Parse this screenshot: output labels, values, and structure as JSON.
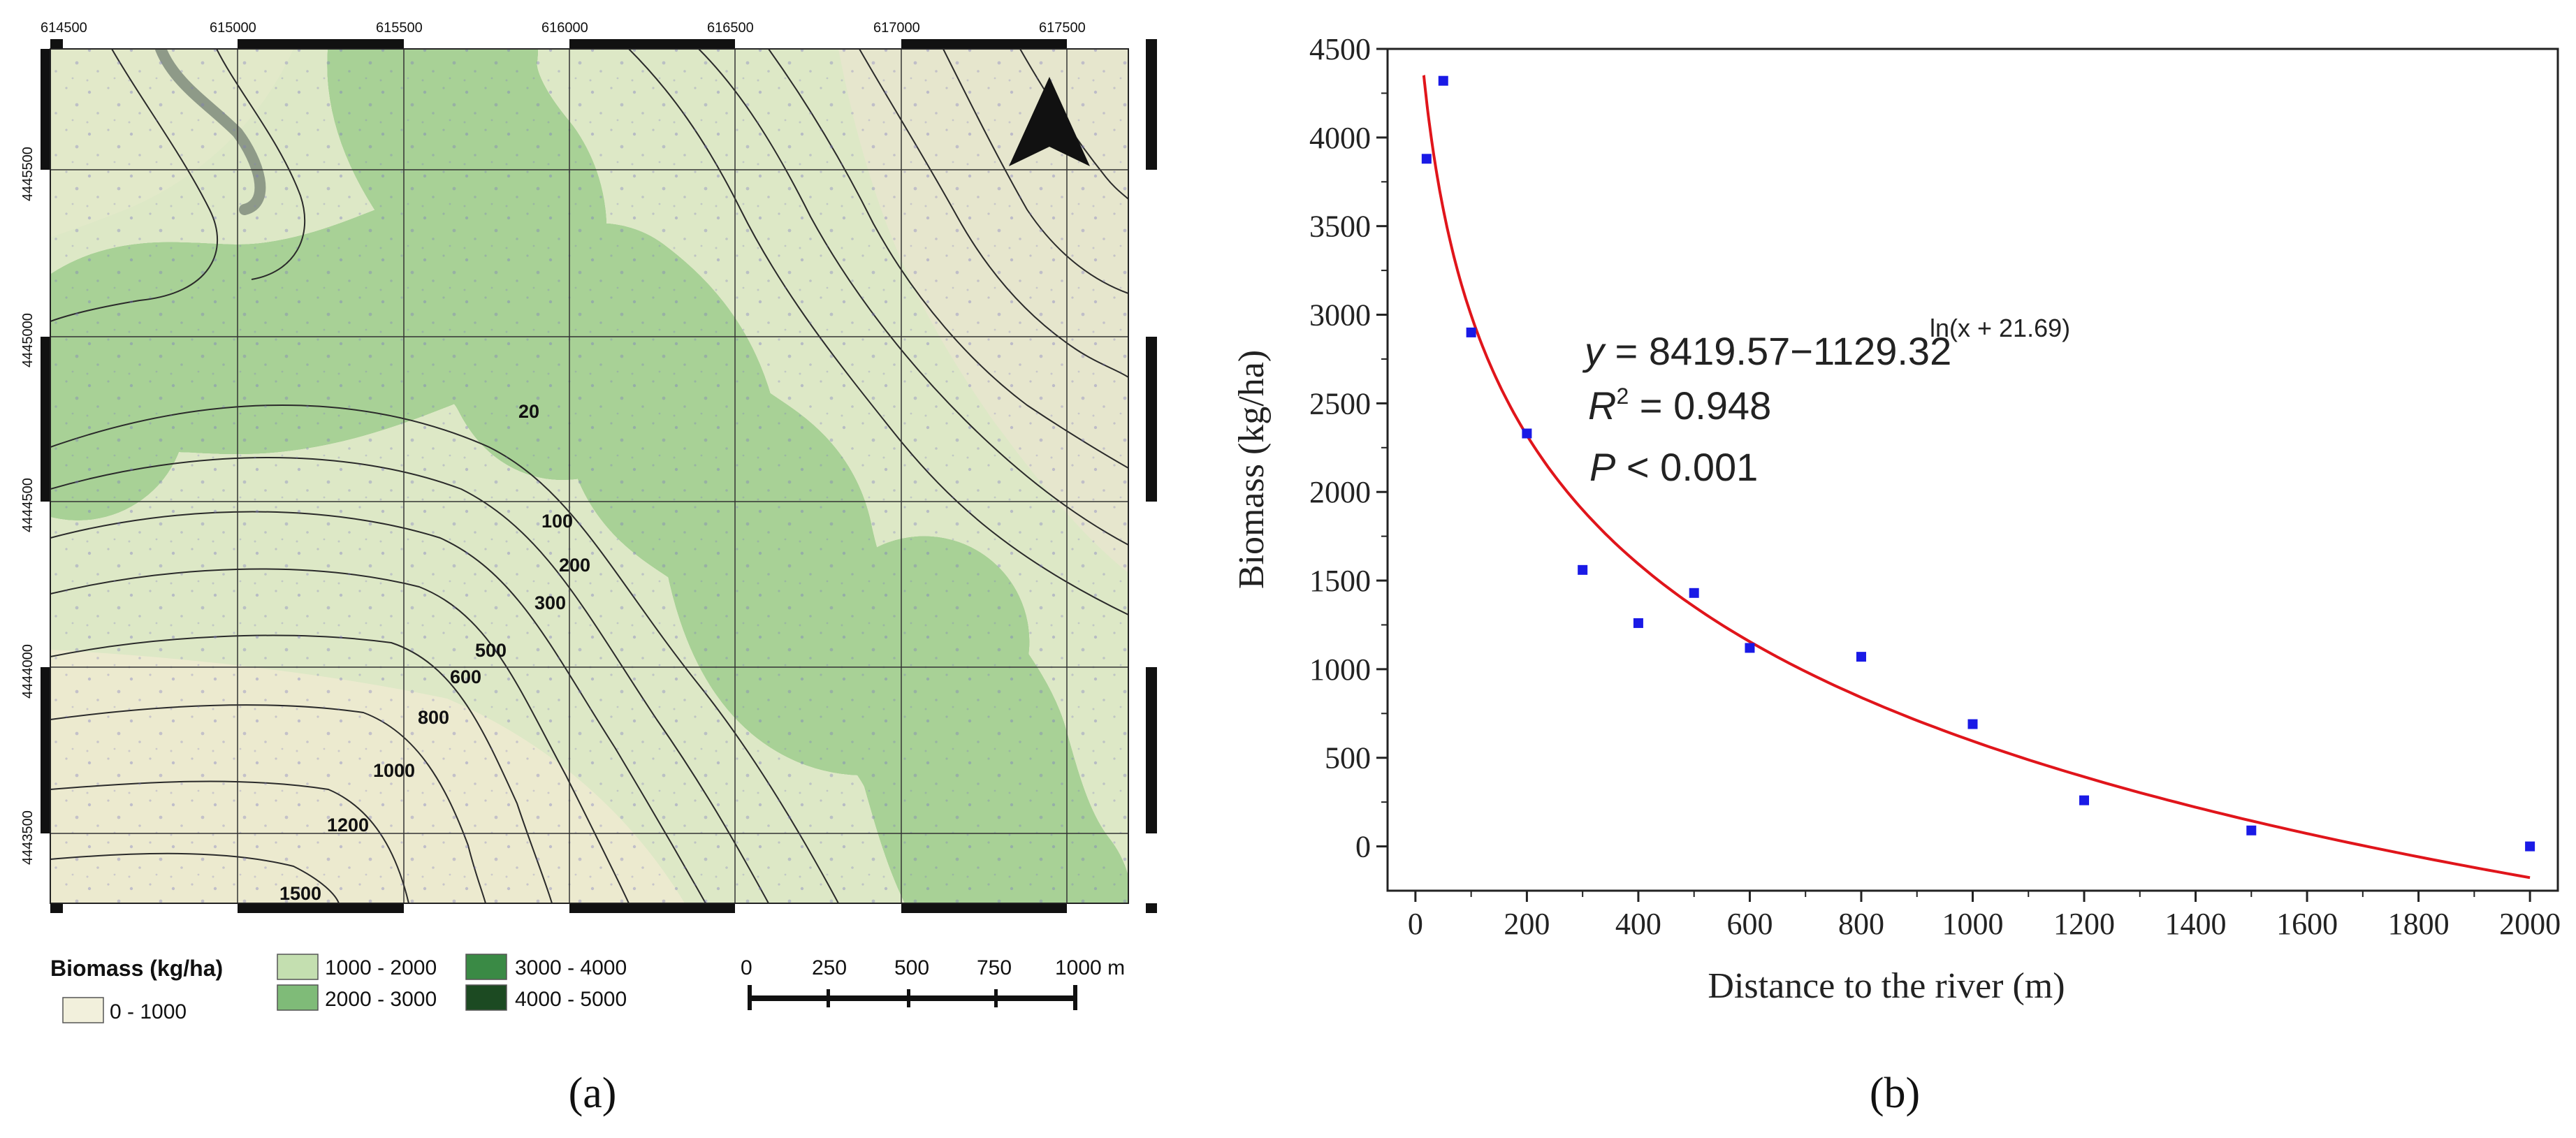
{
  "panel_a": {
    "label": "(a)",
    "map": {
      "grid_x_labels": [
        "614500",
        "615000",
        "615500",
        "616000",
        "616500",
        "617000",
        "617500"
      ],
      "grid_y_labels": [
        "4445500",
        "4445000",
        "4444500",
        "4444000",
        "4443500"
      ],
      "contour_labels": [
        "20",
        "100",
        "200",
        "300",
        "500",
        "600",
        "800",
        "1000",
        "1200",
        "1500"
      ],
      "north_arrow_icon": "north-arrow-icon"
    },
    "legend": {
      "title": "Biomass (kg/ha)",
      "items": [
        {
          "label": "0 - 1000",
          "color": "#f2f0dc"
        },
        {
          "label": "1000 - 2000",
          "color": "#c4dfb0"
        },
        {
          "label": "2000 - 3000",
          "color": "#7fbb78"
        },
        {
          "label": "3000 - 4000",
          "color": "#3a8a45"
        },
        {
          "label": "4000 - 5000",
          "color": "#1c4a22"
        }
      ]
    },
    "scalebar": {
      "ticks": [
        "0",
        "250",
        "500",
        "750",
        "1000 m"
      ]
    }
  },
  "panel_b": {
    "label": "(b)",
    "equation": {
      "y_var": "y",
      "eq_main": " = 8419.57−1129.32",
      "eq_exp": "ln(x + 21.69)",
      "r2_var": "R",
      "r2_sup": "2",
      "r2_text": " = 0.948",
      "p_var": "P",
      "p_text": " < 0.001"
    }
  },
  "chart_data": {
    "type": "scatter",
    "xlabel": "Distance to the river (m)",
    "ylabel": "Biomass (kg/ha)",
    "xlim": [
      -50,
      2050
    ],
    "ylim": [
      -250,
      4500
    ],
    "xticks": [
      0,
      200,
      400,
      600,
      800,
      1000,
      1200,
      1400,
      1600,
      1800,
      2000
    ],
    "yticks": [
      0,
      500,
      1000,
      1500,
      2000,
      2500,
      3000,
      3500,
      4000,
      4500
    ],
    "point_color": "#1a1ae6",
    "fit_color": "#e0151b",
    "series": [
      {
        "x": [
          20,
          50,
          100,
          200,
          300,
          400,
          500,
          600,
          800,
          1000,
          1200,
          1500,
          2000
        ],
        "y": [
          3880,
          4320,
          2900,
          2330,
          1560,
          1260,
          1430,
          1120,
          1070,
          690,
          260,
          90,
          0
        ]
      }
    ],
    "fit": {
      "a": 8419.57,
      "b": 1129.32,
      "c": 21.69,
      "x_from": 15,
      "x_to": 2000
    }
  }
}
